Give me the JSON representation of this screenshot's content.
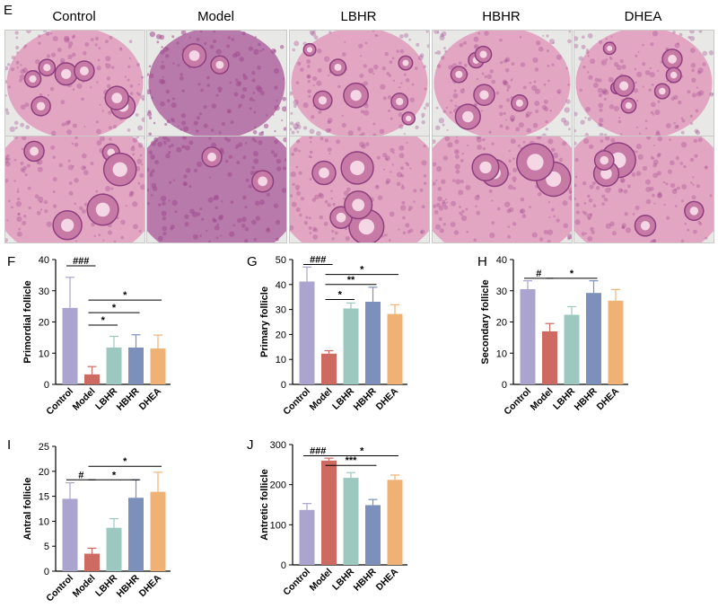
{
  "panel_E": {
    "letter": "E",
    "groups": [
      "Control",
      "Model",
      "LBHR",
      "HBHR",
      "DHEA"
    ],
    "rows": [
      "overview",
      "magnified"
    ]
  },
  "colors": {
    "Control": "#aaa4ce",
    "Model": "#cd6a62",
    "LBHR": "#9cc8c0",
    "HBHR": "#7d90bc",
    "DHEA": "#efb274",
    "tissue_light": "#e3a6c2",
    "tissue_dark": "#a04b8e",
    "background_slide": "#e8e8e6"
  },
  "chart_data": [
    {
      "panel": "F",
      "type": "bar",
      "ylabel": "Primordial follicle",
      "categories": [
        "Control",
        "Model",
        "LBHR",
        "HBHR",
        "DHEA"
      ],
      "values": [
        24.5,
        3.2,
        11.8,
        11.8,
        11.5
      ],
      "errors": [
        9.8,
        2.5,
        3.6,
        4.1,
        4.3
      ],
      "ylim": [
        0,
        40
      ],
      "yticks": [
        0,
        10,
        20,
        30,
        40
      ],
      "annotations": [
        {
          "from": 0,
          "to": 1,
          "label": "###",
          "y": 38
        },
        {
          "from": 1,
          "to": 2,
          "label": "*",
          "y": 19
        },
        {
          "from": 1,
          "to": 3,
          "label": "*",
          "y": 23
        },
        {
          "from": 1,
          "to": 4,
          "label": "*",
          "y": 27
        }
      ]
    },
    {
      "panel": "G",
      "type": "bar",
      "ylabel": "Primary follicle",
      "categories": [
        "Control",
        "Model",
        "LBHR",
        "HBHR",
        "DHEA"
      ],
      "values": [
        41.2,
        12.3,
        30.4,
        33.1,
        28.2
      ],
      "errors": [
        5.8,
        1.2,
        2.2,
        5.8,
        3.7
      ],
      "ylim": [
        0,
        50
      ],
      "yticks": [
        0,
        10,
        20,
        30,
        40,
        50
      ],
      "annotations": [
        {
          "from": 0,
          "to": 1,
          "label": "###",
          "y": 48
        },
        {
          "from": 1,
          "to": 2,
          "label": "*",
          "y": 34
        },
        {
          "from": 1,
          "to": 3,
          "label": "**",
          "y": 40
        },
        {
          "from": 1,
          "to": 4,
          "label": "*",
          "y": 44
        }
      ]
    },
    {
      "panel": "H",
      "type": "bar",
      "ylabel": "Secondary follicle",
      "categories": [
        "Control",
        "Model",
        "LBHR",
        "HBHR",
        "DHEA"
      ],
      "values": [
        30.5,
        17.0,
        22.3,
        29.3,
        26.8
      ],
      "errors": [
        2.7,
        2.5,
        2.6,
        3.9,
        3.6
      ],
      "ylim": [
        0,
        40
      ],
      "yticks": [
        0,
        10,
        20,
        30,
        40
      ],
      "annotations": [
        {
          "from": 0,
          "to": 1,
          "label": "#",
          "y": 34
        },
        {
          "from": 1,
          "to": 3,
          "label": "*",
          "y": 34
        }
      ]
    },
    {
      "panel": "I",
      "type": "bar",
      "ylabel": "Antral follicle",
      "categories": [
        "Control",
        "Model",
        "LBHR",
        "HBHR",
        "DHEA"
      ],
      "values": [
        14.5,
        3.5,
        8.7,
        14.7,
        15.9
      ],
      "errors": [
        3.2,
        1.1,
        1.8,
        3.6,
        3.9
      ],
      "ylim": [
        0,
        25
      ],
      "yticks": [
        0,
        5,
        10,
        15,
        20,
        25
      ],
      "annotations": [
        {
          "from": 0,
          "to": 1,
          "label": "#",
          "y": 18.3
        },
        {
          "from": 1,
          "to": 3,
          "label": "*",
          "y": 18.3
        },
        {
          "from": 1,
          "to": 4,
          "label": "*",
          "y": 21
        }
      ]
    },
    {
      "panel": "J",
      "type": "bar",
      "ylabel": "Antretic follicle",
      "categories": [
        "Control",
        "Model",
        "LBHR",
        "HBHR",
        "DHEA"
      ],
      "values": [
        137,
        260,
        217,
        149,
        212
      ],
      "errors": [
        16,
        6,
        13,
        14,
        12
      ],
      "ylim": [
        0,
        300
      ],
      "yticks": [
        0,
        100,
        200,
        300
      ],
      "annotations": [
        {
          "from": 0,
          "to": 1,
          "label": "###",
          "y": 272
        },
        {
          "from": 1,
          "to": 3,
          "label": "***",
          "y": 248
        },
        {
          "from": 1,
          "to": 4,
          "label": "*",
          "y": 272
        }
      ]
    }
  ]
}
